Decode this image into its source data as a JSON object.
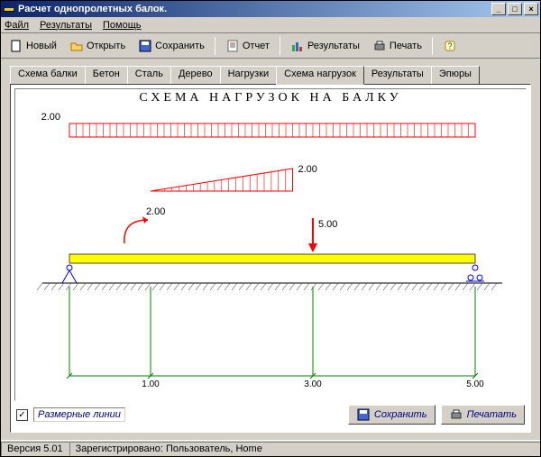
{
  "window": {
    "title": "Расчет однопролетных балок."
  },
  "menu": {
    "file": "Файл",
    "results": "Результаты",
    "help": "Помощь"
  },
  "toolbar": {
    "new": "Новый",
    "open": "Открыть",
    "save": "Сохранить",
    "report": "Отчет",
    "results": "Результаты",
    "print": "Печать"
  },
  "tabs": {
    "t0": "Схема балки",
    "t1": "Бетон",
    "t2": "Сталь",
    "t3": "Дерево",
    "t4": "Нагрузки",
    "t5": "Схема нагрузок",
    "t6": "Результаты",
    "t7": "Эпюры"
  },
  "diagram": {
    "title": "СХЕМА НАГРУЗОК НА БАЛКУ",
    "distributed_load": "2.00",
    "triangle_load": "2.00",
    "moment_load": "2.00",
    "point_load": "5.00",
    "dim1": "1.00",
    "dim2": "3.00",
    "dim3": "5.00",
    "beam_color": "#ffff00",
    "load_color": "#ff0000",
    "support_color": "#0000ff",
    "dim_color": "#008000",
    "hatch_color": "#555555"
  },
  "bottom": {
    "dim_lines": "Размерные линии",
    "save": "Сохранить",
    "print": "Печатать"
  },
  "status": {
    "version": "Версия 5.01",
    "reg": "Зарегистрировано: Пользователь, Home"
  }
}
